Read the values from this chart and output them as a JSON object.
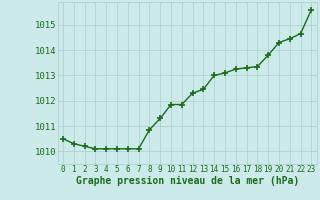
{
  "x": [
    0,
    1,
    2,
    3,
    4,
    5,
    6,
    7,
    8,
    9,
    10,
    11,
    12,
    13,
    14,
    15,
    16,
    17,
    18,
    19,
    20,
    21,
    22,
    23
  ],
  "y": [
    1010.5,
    1010.3,
    1010.2,
    1010.1,
    1010.1,
    1010.1,
    1010.1,
    1010.1,
    1010.85,
    1011.3,
    1011.85,
    1011.85,
    1012.3,
    1012.45,
    1013.0,
    1013.1,
    1013.25,
    1013.3,
    1013.35,
    1013.8,
    1014.3,
    1014.45,
    1014.65,
    1015.6
  ],
  "line_color": "#1a6b1a",
  "marker": "+",
  "markersize": 4,
  "markeredgewidth": 1.2,
  "linewidth": 1.0,
  "xlabel": "Graphe pression niveau de la mer (hPa)",
  "xlabel_fontsize": 7,
  "xlabel_color": "#1a6b1a",
  "xlabel_fontweight": "bold",
  "ylabel_ticks": [
    1010,
    1011,
    1012,
    1013,
    1014,
    1015
  ],
  "ylim": [
    1009.5,
    1015.9
  ],
  "xlim": [
    -0.5,
    23.5
  ],
  "bg_color": "#cceaea",
  "grid_color": "#aacccc",
  "tick_label_color": "#1a6b1a",
  "ytick_fontsize": 6.5,
  "xtick_fontsize": 5.5,
  "xtick_labels": [
    "0",
    "1",
    "2",
    "3",
    "4",
    "5",
    "6",
    "7",
    "8",
    "9",
    "10",
    "11",
    "12",
    "13",
    "14",
    "15",
    "16",
    "17",
    "18",
    "19",
    "20",
    "21",
    "22",
    "23"
  ]
}
